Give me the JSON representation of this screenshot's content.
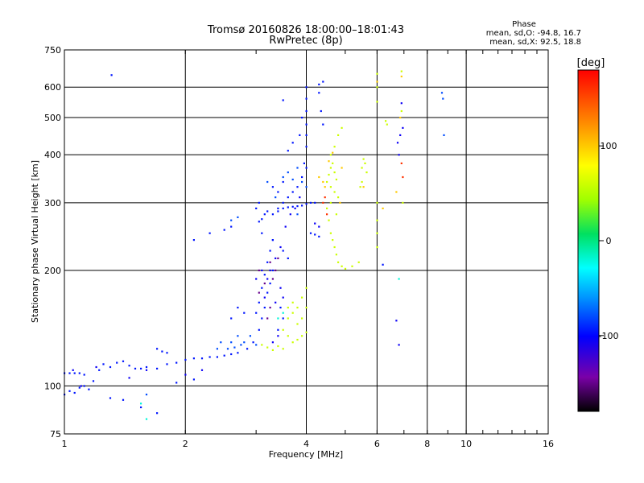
{
  "chart_data": {
    "type": "scatter",
    "title": "Tromsø 20160826 18:00:00–18:01:43",
    "subtitle": "RwPretec (8p)",
    "xlabel": "Frequency [MHz]",
    "ylabel": "Stationary phase Virtual Height [km]",
    "x_scale": "log",
    "y_scale": "log",
    "xlim": [
      1,
      16
    ],
    "ylim": [
      75,
      750
    ],
    "x_ticks": [
      1,
      2,
      4,
      6,
      8,
      10,
      16
    ],
    "y_ticks": [
      75,
      100,
      200,
      300,
      400,
      500,
      600,
      750
    ],
    "grid": true,
    "colorbar": {
      "label": "[deg]",
      "ticks": [
        -100,
        0,
        100
      ],
      "range": [
        -180,
        180
      ]
    },
    "stats": {
      "heading": "Phase",
      "line_o": "mean, sd,O: -94.8, 16.7",
      "line_x": "mean, sd,X:  92.5, 18.8"
    },
    "series": [
      {
        "phase": -95,
        "points": [
          [
            1.0,
            108
          ],
          [
            1.03,
            108
          ],
          [
            1.06,
            108
          ],
          [
            1.09,
            108
          ],
          [
            1.12,
            107
          ],
          [
            1.0,
            95
          ],
          [
            1.03,
            97
          ],
          [
            1.06,
            96
          ],
          [
            1.09,
            99
          ],
          [
            1.12,
            100
          ],
          [
            1.15,
            98
          ],
          [
            1.18,
            103
          ],
          [
            1.22,
            110
          ],
          [
            1.25,
            114
          ],
          [
            1.3,
            112
          ],
          [
            1.35,
            115
          ],
          [
            1.4,
            116
          ],
          [
            1.45,
            113
          ],
          [
            1.5,
            111
          ],
          [
            1.55,
            111
          ],
          [
            1.6,
            112
          ],
          [
            1.7,
            111
          ],
          [
            1.8,
            114
          ],
          [
            1.9,
            115
          ],
          [
            2.0,
            117
          ],
          [
            2.1,
            118
          ],
          [
            2.2,
            118
          ],
          [
            2.3,
            119
          ],
          [
            2.4,
            119
          ],
          [
            2.5,
            120
          ],
          [
            2.6,
            121
          ],
          [
            2.7,
            122
          ],
          [
            2.85,
            125
          ],
          [
            2.95,
            130
          ],
          [
            3.05,
            140
          ],
          [
            3.1,
            150
          ],
          [
            3.15,
            160
          ],
          [
            3.2,
            175
          ],
          [
            3.25,
            185
          ],
          [
            3.3,
            200
          ],
          [
            3.0,
            155
          ],
          [
            3.05,
            165
          ],
          [
            3.1,
            180
          ],
          [
            3.15,
            195
          ],
          [
            3.2,
            210
          ],
          [
            3.25,
            225
          ],
          [
            3.3,
            240
          ],
          [
            3.05,
            268
          ],
          [
            3.1,
            272
          ],
          [
            3.15,
            280
          ],
          [
            3.2,
            285
          ],
          [
            3.3,
            280
          ],
          [
            3.4,
            285
          ],
          [
            3.5,
            290
          ],
          [
            3.6,
            292
          ],
          [
            3.7,
            293
          ],
          [
            3.8,
            294
          ],
          [
            3.9,
            295
          ],
          [
            4.0,
            298
          ],
          [
            4.1,
            300
          ],
          [
            4.2,
            300
          ],
          [
            3.4,
            290
          ],
          [
            3.5,
            300
          ],
          [
            3.6,
            310
          ],
          [
            3.7,
            320
          ],
          [
            3.8,
            330
          ],
          [
            3.9,
            350
          ],
          [
            4.0,
            370
          ],
          [
            3.95,
            380
          ],
          [
            4.0,
            420
          ],
          [
            4.0,
            450
          ],
          [
            4.0,
            480
          ],
          [
            4.0,
            520
          ],
          [
            4.0,
            560
          ],
          [
            4.0,
            600
          ],
          [
            3.85,
            450
          ],
          [
            3.9,
            500
          ],
          [
            3.7,
            430
          ],
          [
            3.6,
            410
          ],
          [
            3.5,
            340
          ],
          [
            3.3,
            330
          ],
          [
            3.4,
            320
          ],
          [
            3.1,
            250
          ],
          [
            3.3,
            240
          ],
          [
            3.5,
            225
          ],
          [
            3.6,
            215
          ],
          [
            4.1,
            250
          ],
          [
            4.2,
            248
          ],
          [
            4.3,
            245
          ],
          [
            2.1,
            240
          ],
          [
            2.3,
            250
          ],
          [
            2.5,
            255
          ],
          [
            2.6,
            260
          ],
          [
            3.0,
            290
          ],
          [
            3.05,
            300
          ],
          [
            1.7,
            125
          ],
          [
            1.75,
            123
          ],
          [
            1.8,
            122
          ],
          [
            1.3,
            93
          ],
          [
            1.4,
            92
          ],
          [
            1.55,
            88
          ],
          [
            1.7,
            85
          ],
          [
            1.31,
            645
          ],
          [
            3.5,
            555
          ],
          [
            4.4,
            620
          ],
          [
            4.3,
            610
          ],
          [
            6.2,
            207
          ],
          [
            4.3,
            580
          ],
          [
            4.35,
            520
          ],
          [
            4.4,
            480
          ],
          [
            2.6,
            150
          ],
          [
            2.7,
            160
          ],
          [
            2.8,
            155
          ],
          [
            3.4,
            140
          ],
          [
            3.5,
            150
          ],
          [
            3.45,
            160
          ],
          [
            1.9,
            102
          ],
          [
            2.1,
            104
          ]
        ]
      },
      {
        "phase": -105,
        "points": [
          [
            3.3,
            130
          ],
          [
            3.4,
            135
          ],
          [
            3.5,
            170
          ],
          [
            3.45,
            180
          ],
          [
            3.2,
            190
          ],
          [
            3.25,
            200
          ],
          [
            3.35,
            215
          ],
          [
            3.45,
            230
          ],
          [
            3.55,
            260
          ],
          [
            3.65,
            280
          ],
          [
            3.75,
            290
          ],
          [
            3.85,
            310
          ],
          [
            3.15,
            170
          ],
          [
            3.35,
            165
          ],
          [
            1.05,
            110
          ],
          [
            1.1,
            100
          ],
          [
            1.2,
            112
          ],
          [
            1.45,
            105
          ],
          [
            1.6,
            110
          ],
          [
            2.0,
            107
          ],
          [
            2.2,
            110
          ],
          [
            6.7,
            148
          ],
          [
            6.8,
            128
          ],
          [
            3.0,
            190
          ],
          [
            3.1,
            200
          ],
          [
            4.2,
            265
          ],
          [
            4.3,
            260
          ],
          [
            6.9,
            545
          ],
          [
            6.85,
            450
          ],
          [
            6.8,
            400
          ],
          [
            6.75,
            430
          ],
          [
            6.95,
            470
          ]
        ]
      },
      {
        "phase": -80,
        "points": [
          [
            2.55,
            125
          ],
          [
            2.65,
            126
          ],
          [
            2.75,
            128
          ],
          [
            2.8,
            130
          ],
          [
            2.9,
            135
          ],
          [
            3.0,
            128
          ],
          [
            2.7,
            135
          ],
          [
            2.6,
            130
          ],
          [
            2.4,
            125
          ],
          [
            2.45,
            130
          ],
          [
            3.5,
            350
          ],
          [
            3.6,
            360
          ],
          [
            3.7,
            345
          ],
          [
            3.8,
            370
          ],
          [
            3.9,
            340
          ],
          [
            4.0,
            330
          ],
          [
            3.2,
            340
          ],
          [
            3.35,
            310
          ],
          [
            2.6,
            270
          ],
          [
            2.7,
            275
          ],
          [
            1.6,
            95
          ],
          [
            3.8,
            280
          ],
          [
            8.7,
            580
          ],
          [
            8.75,
            560
          ],
          [
            8.8,
            450
          ]
        ]
      },
      {
        "phase": -20,
        "points": [
          [
            1.6,
            82
          ],
          [
            1.55,
            90
          ],
          [
            3.4,
            150
          ],
          [
            3.5,
            155
          ],
          [
            6.8,
            190
          ]
        ]
      },
      {
        "phase": 60,
        "points": [
          [
            4.5,
            340
          ],
          [
            4.55,
            355
          ],
          [
            4.6,
            370
          ],
          [
            4.65,
            380
          ],
          [
            4.7,
            360
          ],
          [
            4.75,
            345
          ],
          [
            4.6,
            330
          ],
          [
            4.7,
            320
          ],
          [
            4.8,
            310
          ],
          [
            4.5,
            290
          ],
          [
            4.55,
            270
          ],
          [
            4.6,
            250
          ],
          [
            4.65,
            240
          ],
          [
            4.7,
            230
          ],
          [
            4.75,
            220
          ],
          [
            4.8,
            210
          ],
          [
            4.9,
            205
          ],
          [
            5.0,
            202
          ],
          [
            5.2,
            205
          ],
          [
            5.4,
            210
          ],
          [
            5.5,
            370
          ],
          [
            5.55,
            390
          ],
          [
            5.6,
            380
          ],
          [
            5.65,
            360
          ],
          [
            5.5,
            340
          ],
          [
            5.45,
            330
          ],
          [
            4.6,
            400
          ],
          [
            4.7,
            420
          ],
          [
            4.8,
            450
          ],
          [
            4.9,
            470
          ],
          [
            3.6,
            150
          ],
          [
            3.7,
            155
          ],
          [
            3.8,
            160
          ],
          [
            3.9,
            170
          ],
          [
            4.0,
            180
          ],
          [
            3.5,
            140
          ],
          [
            3.6,
            135
          ],
          [
            3.7,
            130
          ],
          [
            3.8,
            132
          ],
          [
            3.9,
            135
          ],
          [
            4.0,
            138
          ],
          [
            3.1,
            128
          ],
          [
            3.2,
            126
          ],
          [
            3.3,
            124
          ],
          [
            3.4,
            127
          ],
          [
            3.5,
            125
          ],
          [
            6.0,
            650
          ],
          [
            6.0,
            600
          ],
          [
            6.0,
            550
          ],
          [
            6.9,
            660
          ],
          [
            6.9,
            520
          ],
          [
            6.0,
            300
          ],
          [
            6.0,
            270
          ],
          [
            6.0,
            250
          ],
          [
            6.0,
            230
          ],
          [
            6.95,
            300
          ],
          [
            6.3,
            490
          ],
          [
            6.35,
            480
          ],
          [
            4.6,
            300
          ],
          [
            4.75,
            280
          ],
          [
            3.8,
            145
          ],
          [
            3.9,
            150
          ],
          [
            4.0,
            160
          ],
          [
            3.6,
            160
          ],
          [
            3.7,
            165
          ]
        ]
      },
      {
        "phase": 100,
        "points": [
          [
            4.3,
            350
          ],
          [
            4.4,
            340
          ],
          [
            4.45,
            330
          ],
          [
            6.0,
            620
          ],
          [
            6.9,
            640
          ],
          [
            6.85,
            500
          ],
          [
            6.7,
            320
          ],
          [
            6.2,
            290
          ],
          [
            5.55,
            330
          ],
          [
            4.9,
            370
          ],
          [
            4.65,
            405
          ],
          [
            4.55,
            385
          ],
          [
            4.85,
            300
          ]
        ]
      },
      {
        "phase": -150,
        "points": [
          [
            3.3,
            190
          ],
          [
            3.35,
            200
          ],
          [
            3.25,
            160
          ],
          [
            3.2,
            150
          ],
          [
            3.05,
            175
          ],
          [
            3.15,
            185
          ],
          [
            3.25,
            210
          ],
          [
            3.4,
            215
          ],
          [
            3.05,
            200
          ]
        ]
      },
      {
        "phase": 160,
        "points": [
          [
            4.4,
            300
          ],
          [
            4.45,
            310
          ],
          [
            4.5,
            280
          ],
          [
            6.95,
            350
          ],
          [
            6.9,
            380
          ]
        ]
      }
    ]
  }
}
